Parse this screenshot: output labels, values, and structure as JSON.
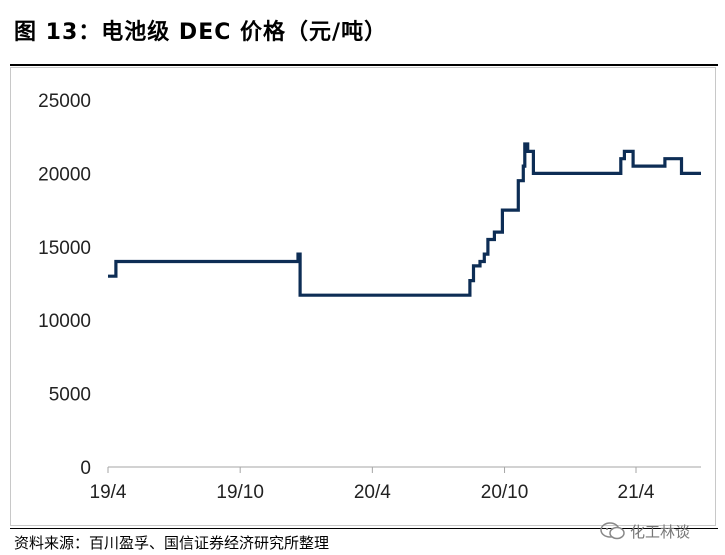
{
  "title": "图 13：电池级 DEC 价格（元/吨）",
  "source": "资料来源：百川盈孚、国信证券经济研究所整理",
  "watermark": "化工林谈",
  "colors": {
    "line": "#0d2d55",
    "axis": "#a6a6a6",
    "rule": "#000000"
  },
  "chart_data": {
    "type": "line",
    "title": "",
    "xlabel": "",
    "ylabel": "",
    "ylim": [
      0,
      25000
    ],
    "yticks": [
      0,
      5000,
      10000,
      15000,
      20000,
      25000
    ],
    "ytick_labels": [
      "0",
      "5000",
      "10000",
      "15000",
      "20000",
      "25000"
    ],
    "xlim": [
      "2019-04-01",
      "2021-06-30"
    ],
    "xticks": [
      "2019-04-01",
      "2019-10-01",
      "2020-04-01",
      "2020-10-01",
      "2021-04-01"
    ],
    "xtick_labels": [
      "19/4",
      "19/10",
      "20/4",
      "20/10",
      "21/4"
    ],
    "grid": false,
    "legend": "none",
    "series": [
      {
        "name": "",
        "step": true,
        "points": [
          [
            "2019-04-01",
            13000
          ],
          [
            "2019-04-12",
            14000
          ],
          [
            "2019-12-20",
            14500
          ],
          [
            "2019-12-23",
            11700
          ],
          [
            "2020-08-14",
            12700
          ],
          [
            "2020-08-19",
            13700
          ],
          [
            "2020-08-28",
            14000
          ],
          [
            "2020-09-03",
            14500
          ],
          [
            "2020-09-08",
            15500
          ],
          [
            "2020-09-17",
            16000
          ],
          [
            "2020-09-28",
            17500
          ],
          [
            "2020-10-20",
            19500
          ],
          [
            "2020-10-27",
            20500
          ],
          [
            "2020-10-29",
            22000
          ],
          [
            "2020-11-02",
            21500
          ],
          [
            "2020-11-10",
            20000
          ],
          [
            "2021-03-11",
            21000
          ],
          [
            "2021-03-16",
            21500
          ],
          [
            "2021-03-28",
            20500
          ],
          [
            "2021-05-11",
            21000
          ],
          [
            "2021-06-03",
            20000
          ],
          [
            "2021-06-30",
            20000
          ]
        ]
      }
    ]
  }
}
